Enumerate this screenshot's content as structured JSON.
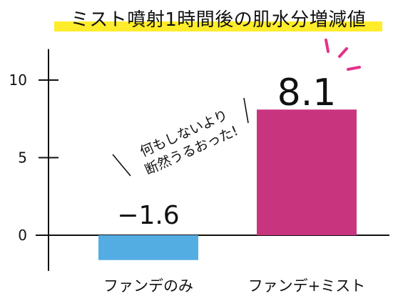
{
  "chart_data": {
    "type": "bar",
    "title": "ミスト噴射1時間後の肌水分増減値",
    "categories": [
      "ファンデのみ",
      "ファンデ+ミスト"
    ],
    "values": [
      -1.6,
      8.1
    ],
    "data_labels": [
      "−1.6",
      "8.1"
    ],
    "colors": [
      "#53ade3",
      "#c9347f"
    ],
    "ylim": [
      -2.3,
      12
    ],
    "yticks": [
      0,
      5,
      10
    ],
    "xlabel": "",
    "ylabel": "",
    "grid": false,
    "annotation": {
      "lines": [
        "何もしないより",
        "断然うるおった!"
      ]
    },
    "accent_color": "#e2328a"
  }
}
